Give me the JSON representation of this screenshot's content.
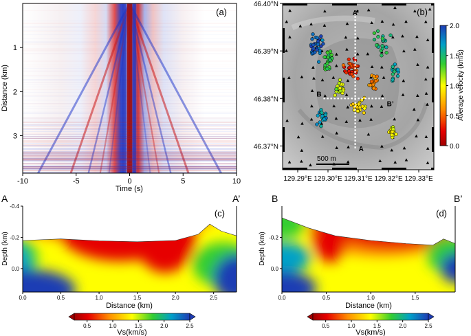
{
  "panels": {
    "a": {
      "label": "(a)"
    },
    "b": {
      "label": "(b)"
    },
    "c": {
      "label": "(c)",
      "start": "A",
      "end": "A’"
    },
    "d": {
      "label": "(d)",
      "start": "B",
      "end": "B’"
    }
  },
  "chart_data": [
    {
      "id": "a",
      "type": "heatmap",
      "description_kind": "cross-correlation record section (red/blue)",
      "xlabel": "Time (s)",
      "ylabel": "Distance (km)",
      "xlim": [
        -10,
        10
      ],
      "ylim": [
        0,
        3.85
      ],
      "y_inverted": true,
      "xticks": [
        -10,
        -5,
        0,
        5,
        10
      ],
      "yticks": [
        1,
        2,
        3
      ],
      "colors": {
        "positive": "#cc1a1a",
        "negative": "#1a33cc"
      }
    },
    {
      "id": "b",
      "type": "scatter",
      "xlim": [
        129.285,
        129.335
      ],
      "ylim": [
        46.365,
        46.4
      ],
      "xticks": [
        129.29,
        129.3,
        129.31,
        129.32,
        129.33
      ],
      "xtick_labels": [
        "129.29°E",
        "129.30°E",
        "129.31°E",
        "129.32°E",
        "129.33°E"
      ],
      "yticks": [
        46.37,
        46.38,
        46.39,
        46.4
      ],
      "ytick_labels": [
        "46.37°N",
        "46.38°N",
        "46.39°N",
        "46.40°N"
      ],
      "colorbar": {
        "label": "Average velocity (km/s)",
        "range": [
          0,
          2.0
        ],
        "ticks": [
          "0.0",
          "0.5",
          "1.0",
          "1.5",
          "2.0"
        ]
      },
      "profiles": [
        {
          "name": "A",
          "start_label": "A",
          "end_label": "A’",
          "from": [
            129.309,
            46.3695
          ],
          "to": [
            129.309,
            46.398
          ]
        },
        {
          "name": "B",
          "start_label": "B",
          "end_label": "B’",
          "from": [
            129.2985,
            46.38
          ],
          "to": [
            129.319,
            46.38
          ]
        }
      ],
      "scale_bar": "500 m",
      "station_marker": "black triangle",
      "clusters": [
        {
          "center": [
            129.296,
            46.391
          ],
          "spread": [
            0.004,
            0.005
          ],
          "value": 1.9,
          "count": 32
        },
        {
          "center": [
            129.3,
            46.388
          ],
          "spread": [
            0.003,
            0.004
          ],
          "value": 1.4,
          "count": 24
        },
        {
          "center": [
            129.308,
            46.386
          ],
          "spread": [
            0.004,
            0.003
          ],
          "value": 0.35,
          "count": 30
        },
        {
          "center": [
            129.315,
            46.383
          ],
          "spread": [
            0.003,
            0.003
          ],
          "value": 0.6,
          "count": 20
        },
        {
          "center": [
            129.318,
            46.392
          ],
          "spread": [
            0.004,
            0.004
          ],
          "value": 1.5,
          "count": 22
        },
        {
          "center": [
            129.31,
            46.378
          ],
          "spread": [
            0.004,
            0.003
          ],
          "value": 0.9,
          "count": 24
        },
        {
          "center": [
            129.298,
            46.376
          ],
          "spread": [
            0.003,
            0.003
          ],
          "value": 1.7,
          "count": 18
        },
        {
          "center": [
            129.321,
            46.373
          ],
          "spread": [
            0.002,
            0.002
          ],
          "value": 1.05,
          "count": 16
        },
        {
          "center": [
            129.322,
            46.386
          ],
          "spread": [
            0.003,
            0.003
          ],
          "value": 1.6,
          "count": 14
        },
        {
          "center": [
            129.304,
            46.382
          ],
          "spread": [
            0.003,
            0.003
          ],
          "value": 1.1,
          "count": 18
        }
      ]
    },
    {
      "id": "c",
      "type": "heatmap",
      "xlabel": "Distance (km)",
      "ylabel": "Depth (km)",
      "xlim": [
        0,
        2.8
      ],
      "ylim": [
        -0.4,
        0.15
      ],
      "y_inverted": true,
      "xticks": [
        0.0,
        0.5,
        1.0,
        1.5,
        2.0,
        2.5
      ],
      "xtick_labels": [
        "0.0",
        "0.5",
        "1.0",
        "1.5",
        "2.0",
        "2.5"
      ],
      "yticks": [
        -0.4,
        -0.2,
        0.0
      ],
      "ytick_labels": [
        "-0.4",
        "-0.2",
        "0.0"
      ],
      "surface_x": [
        0,
        0.5,
        1.0,
        1.5,
        2.0,
        2.3,
        2.45,
        2.6,
        2.8
      ],
      "surface_depth": [
        -0.18,
        -0.19,
        -0.178,
        -0.172,
        -0.18,
        -0.22,
        -0.285,
        -0.24,
        -0.21
      ],
      "colorbar": {
        "label": "Vs(km/s)",
        "range": [
          0.25,
          2.5
        ],
        "ticks": [
          "0.5",
          "1.0",
          "1.5",
          "2.0",
          "2.5"
        ]
      }
    },
    {
      "id": "d",
      "type": "heatmap",
      "xlabel": "Distance (km)",
      "ylabel": "Depth (km)",
      "xlim": [
        0,
        1.95
      ],
      "ylim": [
        -0.4,
        0.15
      ],
      "y_inverted": true,
      "xticks": [
        0.0,
        0.5,
        1.0,
        1.5
      ],
      "xtick_labels": [
        "0.0",
        "0.5",
        "1.0",
        "1.5"
      ],
      "yticks": [
        -0.2,
        0.0
      ],
      "ytick_labels": [
        "-0.2",
        "0.0"
      ],
      "surface_x": [
        0,
        0.3,
        0.6,
        1.0,
        1.4,
        1.7,
        1.82,
        1.95
      ],
      "surface_depth": [
        -0.325,
        -0.26,
        -0.21,
        -0.18,
        -0.16,
        -0.15,
        -0.19,
        -0.16
      ],
      "colorbar": {
        "label": "Vs(km/s)",
        "range": [
          0.25,
          2.5
        ],
        "ticks": [
          "0.5",
          "1.0",
          "1.5",
          "2.0",
          "2.5"
        ]
      }
    }
  ]
}
